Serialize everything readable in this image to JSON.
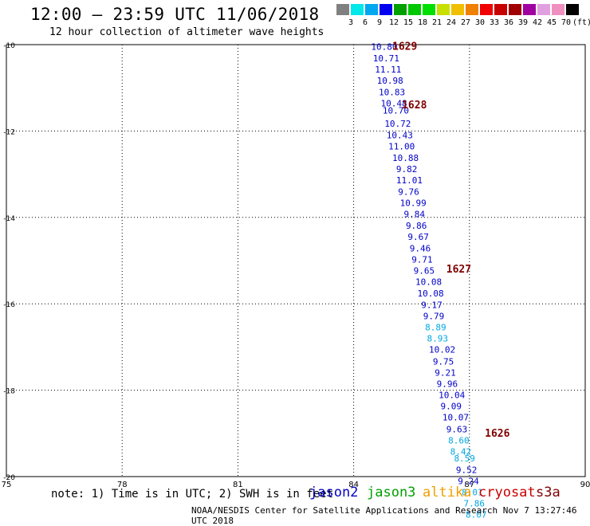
{
  "header": {
    "title": "12:00 — 23:59 UTC 11/06/2018",
    "subtitle": "12 hour collection of altimeter wave heights"
  },
  "colorbar": {
    "colors": [
      "#808080",
      "#00e8e8",
      "#00a8f0",
      "#0000f0",
      "#00a000",
      "#00c800",
      "#00e000",
      "#c8e000",
      "#f0c000",
      "#f08000",
      "#f00000",
      "#c80000",
      "#a00000",
      "#a000a0",
      "#e0a0e0",
      "#f090c0",
      "#000000"
    ],
    "labels": [
      "3",
      "6",
      "9",
      "12",
      "15",
      "18",
      "21",
      "24",
      "27",
      "30",
      "33",
      "36",
      "39",
      "42",
      "45",
      "70",
      "(ft)"
    ]
  },
  "chart_data": {
    "type": "scatter",
    "xlim": [
      75,
      90
    ],
    "ylim": [
      -20,
      -10
    ],
    "xticks": [
      "75",
      "78",
      "81",
      "84",
      "87",
      "90"
    ],
    "yticks": [
      "-10",
      "-12",
      "-14",
      "-16",
      "-18",
      "-20"
    ],
    "grid": true,
    "points": [
      {
        "x": 84.45,
        "y": -10.05,
        "label": "10.80",
        "color": "#0000c8"
      },
      {
        "x": 84.5,
        "y": -10.31,
        "label": "10.71",
        "color": "#0000c8"
      },
      {
        "x": 84.55,
        "y": -10.57,
        "label": "11.11",
        "color": "#0000c8"
      },
      {
        "x": 84.6,
        "y": -10.83,
        "label": "10.98",
        "color": "#0000c8"
      },
      {
        "x": 84.65,
        "y": -11.1,
        "label": "10.83",
        "color": "#0000c8"
      },
      {
        "x": 84.7,
        "y": -11.36,
        "label": "10.48",
        "color": "#0000c8"
      },
      {
        "x": 84.75,
        "y": -11.52,
        "label": "10.70",
        "color": "#0000c8"
      },
      {
        "x": 84.8,
        "y": -11.83,
        "label": "10.72",
        "color": "#0000c8"
      },
      {
        "x": 84.85,
        "y": -12.09,
        "label": "10.43",
        "color": "#0000c8"
      },
      {
        "x": 84.9,
        "y": -12.35,
        "label": "11.00",
        "color": "#0000c8"
      },
      {
        "x": 85.0,
        "y": -12.62,
        "label": "10.88",
        "color": "#0000c8"
      },
      {
        "x": 85.1,
        "y": -12.88,
        "label": "9.82",
        "color": "#0000c8"
      },
      {
        "x": 85.1,
        "y": -13.14,
        "label": "11.01",
        "color": "#0000c8"
      },
      {
        "x": 85.15,
        "y": -13.4,
        "label": "9.76",
        "color": "#0000c8"
      },
      {
        "x": 85.2,
        "y": -13.66,
        "label": "10.99",
        "color": "#0000c8"
      },
      {
        "x": 85.3,
        "y": -13.92,
        "label": "9.84",
        "color": "#0000c8"
      },
      {
        "x": 85.35,
        "y": -14.19,
        "label": "9.86",
        "color": "#0000c8"
      },
      {
        "x": 85.4,
        "y": -14.45,
        "label": "9.67",
        "color": "#0000c8"
      },
      {
        "x": 85.45,
        "y": -14.71,
        "label": "9.46",
        "color": "#0000c8"
      },
      {
        "x": 85.5,
        "y": -14.97,
        "label": "9.71",
        "color": "#0000c8"
      },
      {
        "x": 85.55,
        "y": -15.23,
        "label": "9.65",
        "color": "#0000c8"
      },
      {
        "x": 85.6,
        "y": -15.49,
        "label": "10.08",
        "color": "#0000c8"
      },
      {
        "x": 85.65,
        "y": -15.76,
        "label": "10.08",
        "color": "#0000c8"
      },
      {
        "x": 85.75,
        "y": -16.02,
        "label": "9.17",
        "color": "#0000c8"
      },
      {
        "x": 85.8,
        "y": -16.28,
        "label": "9.79",
        "color": "#0000c8"
      },
      {
        "x": 85.85,
        "y": -16.54,
        "label": "8.89",
        "color": "#00a8e0"
      },
      {
        "x": 85.9,
        "y": -16.8,
        "label": "8.93",
        "color": "#00a8e0"
      },
      {
        "x": 85.95,
        "y": -17.06,
        "label": "10.02",
        "color": "#0000c8"
      },
      {
        "x": 86.05,
        "y": -17.33,
        "label": "9.75",
        "color": "#0000c8"
      },
      {
        "x": 86.1,
        "y": -17.59,
        "label": "9.21",
        "color": "#0000c8"
      },
      {
        "x": 86.15,
        "y": -17.85,
        "label": "9.96",
        "color": "#0000c8"
      },
      {
        "x": 86.2,
        "y": -18.11,
        "label": "10.04",
        "color": "#0000c8"
      },
      {
        "x": 86.25,
        "y": -18.37,
        "label": "9.09",
        "color": "#0000c8"
      },
      {
        "x": 86.3,
        "y": -18.63,
        "label": "10.07",
        "color": "#0000c8"
      },
      {
        "x": 86.4,
        "y": -18.9,
        "label": "9.63",
        "color": "#0000c8"
      },
      {
        "x": 86.45,
        "y": -19.16,
        "label": "8.60",
        "color": "#00a8e0"
      },
      {
        "x": 86.5,
        "y": -19.42,
        "label": "8.42",
        "color": "#00a8e0"
      },
      {
        "x": 86.6,
        "y": -19.58,
        "label": "8.59",
        "color": "#00a8e0"
      },
      {
        "x": 86.65,
        "y": -19.84,
        "label": "9.52",
        "color": "#0000c8"
      },
      {
        "x": 86.7,
        "y": -20.1,
        "label": "9.24",
        "color": "#0000c8"
      },
      {
        "x": 86.8,
        "y": -20.36,
        "label": "8.01",
        "color": "#00a8e0"
      },
      {
        "x": 86.85,
        "y": -20.62,
        "label": "7.86",
        "color": "#00a8e0"
      },
      {
        "x": 86.9,
        "y": -20.88,
        "label": "8.07",
        "color": "#00a8e0"
      }
    ],
    "annotations": [
      {
        "x": 85.0,
        "y": -10.05,
        "text": "1629",
        "color": "#800000"
      },
      {
        "x": 85.25,
        "y": -11.4,
        "text": "1628",
        "color": "#800000"
      },
      {
        "x": 86.4,
        "y": -15.2,
        "text": "1627",
        "color": "#800000"
      },
      {
        "x": 87.4,
        "y": -19.0,
        "text": "1626",
        "color": "#800000"
      }
    ]
  },
  "note": "note: 1) Time is in UTC; 2) SWH is in feet",
  "legend": [
    {
      "label": "jason2",
      "color": "#0000c8"
    },
    {
      "label": "jason3",
      "color": "#00a000"
    },
    {
      "label": "altika",
      "color": "#f0a000"
    },
    {
      "label": "cryosat",
      "color": "#c80000"
    },
    {
      "label": "s3a",
      "color": "#800000"
    }
  ],
  "footer": "NOAA/NESDIS Center for Satellite Applications and Research   Nov  7 13:27:46 UTC 2018"
}
